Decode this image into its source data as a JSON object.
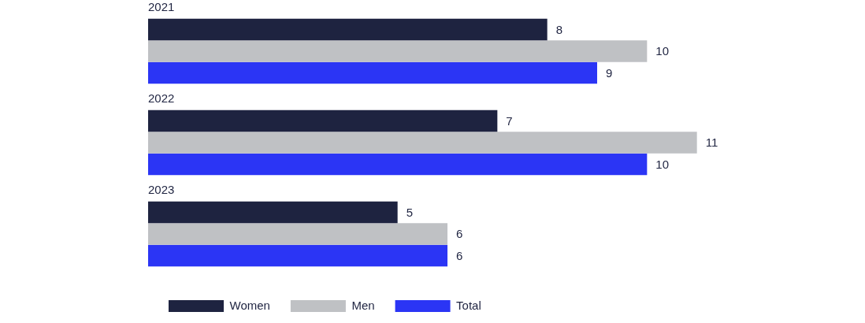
{
  "chart_data": {
    "type": "bar",
    "orientation": "horizontal",
    "categories": [
      "2021",
      "2022",
      "2023"
    ],
    "series": [
      {
        "name": "Women",
        "color": "#1e2340",
        "values": [
          8,
          7,
          5
        ]
      },
      {
        "name": "Men",
        "color": "#bfc1c4",
        "values": [
          10,
          11,
          6
        ]
      },
      {
        "name": "Total",
        "color": "#2b35f5",
        "values": [
          9,
          10,
          6
        ]
      }
    ],
    "data_labels": true,
    "legend": "bottom left"
  }
}
